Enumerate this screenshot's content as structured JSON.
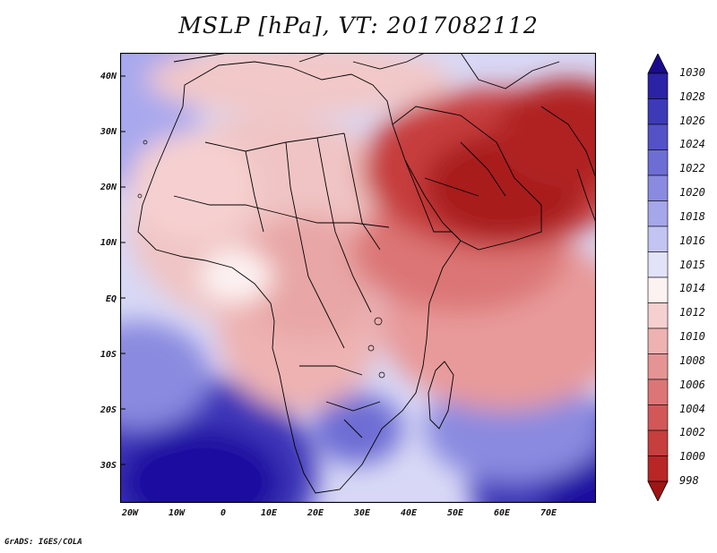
{
  "title": "MSLP [hPa], VT: 2017082112",
  "credit": "GrADS: IGES/COLA",
  "lat_labels": [
    "40N",
    "30N",
    "20N",
    "10N",
    "EQ",
    "10S",
    "20S",
    "30S"
  ],
  "lon_labels": [
    "20W",
    "10W",
    "0",
    "10E",
    "20E",
    "30E",
    "40E",
    "50E",
    "60E",
    "70E"
  ],
  "colorbar_labels": [
    "1030",
    "1028",
    "1026",
    "1024",
    "1022",
    "1020",
    "1018",
    "1016",
    "1015",
    "1014",
    "1012",
    "1010",
    "1008",
    "1006",
    "1004",
    "1002",
    "1000",
    "998"
  ],
  "colorbar_colors": [
    "#1a0a8c",
    "#2b22a6",
    "#3d3ab8",
    "#5452c6",
    "#6d6dd4",
    "#8a8ae0",
    "#a6a6ea",
    "#c4c4f2",
    "#e2e2f8",
    "#fdf2f2",
    "#f6d0d0",
    "#eeb2b2",
    "#e49494",
    "#dc7676",
    "#d25858",
    "#c63e3e",
    "#b82626",
    "#a01414"
  ]
}
